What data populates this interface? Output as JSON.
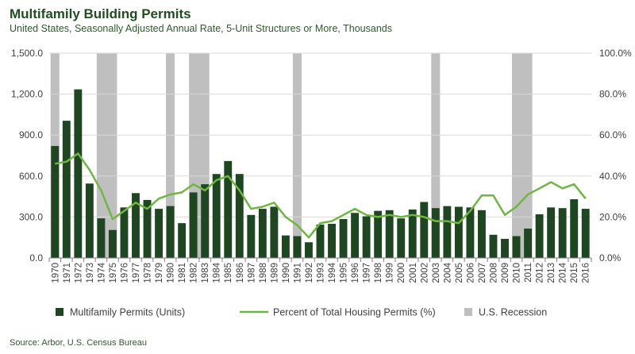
{
  "chart_data": {
    "type": "bar",
    "title": "Multifamily Building Permits",
    "subtitle": "United States, Seasonally Adjusted Annual Rate, 5-Unit Structures or More, Thousands",
    "source": "Source: Arbor, U.S. Census Bureau",
    "categories": [
      "1970",
      "1971",
      "1972",
      "1973",
      "1974",
      "1975",
      "1976",
      "1977",
      "1978",
      "1979",
      "1980",
      "1981",
      "1982",
      "1983",
      "1984",
      "1985",
      "1986",
      "1987",
      "1988",
      "1989",
      "1990",
      "1991",
      "1992",
      "1993",
      "1994",
      "1995",
      "1996",
      "1997",
      "1998",
      "1999",
      "2000",
      "2001",
      "2002",
      "2003",
      "2004",
      "2005",
      "2006",
      "2007",
      "2008",
      "2009",
      "2010",
      "2011",
      "2012",
      "2013",
      "2014",
      "2015",
      "2016"
    ],
    "series": [
      {
        "name": "Multifamily Permits (Units)",
        "type": "bar",
        "axis": "left",
        "color": "#1e4620",
        "values": [
          820,
          1005,
          1235,
          545,
          290,
          205,
          370,
          475,
          425,
          360,
          380,
          255,
          480,
          540,
          615,
          710,
          615,
          315,
          360,
          375,
          165,
          160,
          115,
          245,
          250,
          285,
          330,
          305,
          345,
          350,
          290,
          355,
          410,
          365,
          380,
          375,
          370,
          350,
          170,
          140,
          160,
          215,
          320,
          370,
          365,
          430,
          360
        ]
      },
      {
        "name": "Percent of Total Housing Permits (%)",
        "type": "line",
        "axis": "right",
        "color": "#70b643",
        "values": [
          46,
          47,
          51,
          43,
          33,
          19,
          23,
          27,
          24,
          29,
          31,
          32,
          36,
          33,
          38,
          40,
          33,
          24,
          25,
          27,
          20,
          16,
          10,
          17,
          18,
          21,
          24,
          21,
          20,
          21,
          20,
          21,
          20,
          18,
          18,
          17,
          23,
          30.5,
          30.5,
          21,
          25,
          31,
          34,
          37,
          34,
          36,
          29
        ]
      }
    ],
    "recessions": [
      [
        1970,
        1970
      ],
      [
        1974,
        1975
      ],
      [
        1980,
        1980
      ],
      [
        1982,
        1983
      ],
      [
        1991,
        1991
      ],
      [
        2003,
        2003
      ],
      [
        2010,
        2011
      ]
    ],
    "recession_label": "U.S. Recession",
    "recession_color": "#bfbfbf",
    "y_left": {
      "ticks": [
        "0.0",
        "300.0",
        "600.0",
        "900.0",
        "1,200.0",
        "1,500.0"
      ],
      "ylim": [
        0,
        1500
      ]
    },
    "y_right": {
      "ticks": [
        "0.0%",
        "20.0%",
        "40.0%",
        "60.0%",
        "80.0%",
        "100.0%"
      ],
      "ylim": [
        0,
        100
      ]
    },
    "grid": true,
    "legend_position": "bottom"
  }
}
